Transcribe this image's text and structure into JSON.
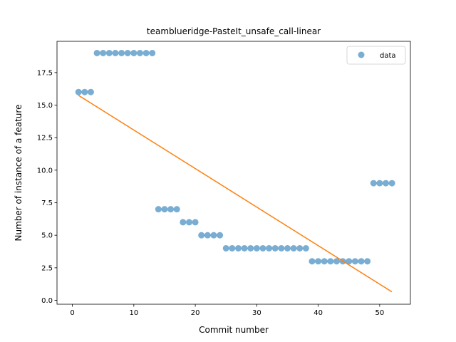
{
  "chart_data": {
    "type": "scatter",
    "title": "teamblueridge-PasteIt_unsafe_call-linear",
    "xlabel": "Commit number",
    "ylabel": "Number of instance of a feature",
    "xlim": [
      -2.5,
      55
    ],
    "ylim": [
      -0.3,
      19.9
    ],
    "xticks": [
      0,
      10,
      20,
      30,
      40,
      50
    ],
    "yticks": [
      0.0,
      2.5,
      5.0,
      7.5,
      10.0,
      12.5,
      15.0,
      17.5
    ],
    "ytick_labels": [
      "0.0",
      "2.5",
      "5.0",
      "7.5",
      "10.0",
      "12.5",
      "15.0",
      "17.5"
    ],
    "legend": {
      "position": "top-right",
      "entries": [
        "data"
      ]
    },
    "series": [
      {
        "name": "data",
        "kind": "scatter",
        "color": "#1f77b4",
        "x": [
          1,
          2,
          3,
          4,
          5,
          6,
          7,
          8,
          9,
          10,
          11,
          12,
          13,
          14,
          15,
          16,
          17,
          18,
          19,
          20,
          21,
          22,
          23,
          24,
          25,
          26,
          27,
          28,
          29,
          30,
          31,
          32,
          33,
          34,
          35,
          36,
          37,
          38,
          39,
          40,
          41,
          42,
          43,
          44,
          45,
          46,
          47,
          48,
          49,
          50,
          51,
          52
        ],
        "y": [
          16,
          16,
          16,
          19,
          19,
          19,
          19,
          19,
          19,
          19,
          19,
          19,
          19,
          7,
          7,
          7,
          7,
          6,
          6,
          6,
          5,
          5,
          5,
          5,
          4,
          4,
          4,
          4,
          4,
          4,
          4,
          4,
          4,
          4,
          4,
          4,
          4,
          4,
          3,
          3,
          3,
          3,
          3,
          3,
          3,
          3,
          3,
          3,
          9,
          9,
          9,
          9
        ]
      },
      {
        "kind": "line",
        "color": "#ff7f0e",
        "x": [
          1,
          52
        ],
        "y": [
          15.75,
          0.65
        ]
      }
    ]
  }
}
